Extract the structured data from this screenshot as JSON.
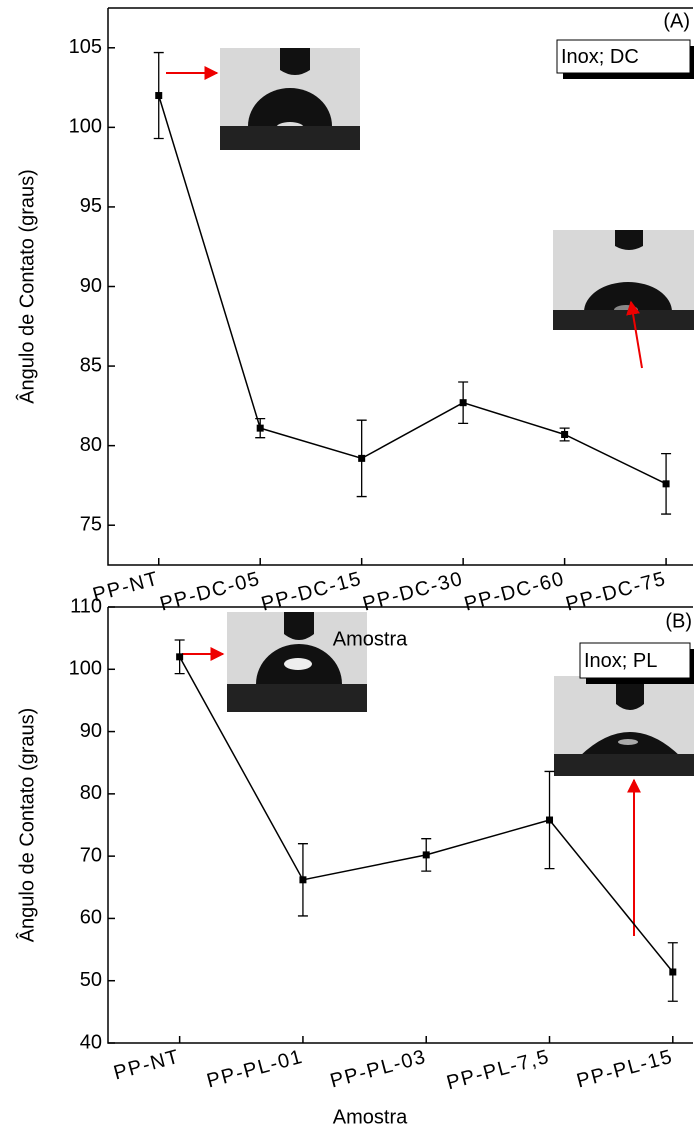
{
  "chart_data": [
    {
      "type": "line",
      "annotation": "(A)",
      "x_label": "Amostra",
      "y_label": "Ângulo de Contato (graus)",
      "categories": [
        "PP-NT",
        "PP-DC-05",
        "PP-DC-15",
        "PP-DC-30",
        "PP-DC-60",
        "PP-DC-75"
      ],
      "series": [
        {
          "name": "Inox; DC",
          "color": "#000000",
          "values": [
            102.0,
            81.1,
            79.2,
            82.7,
            80.7,
            77.6
          ],
          "errors": [
            2.7,
            0.6,
            2.4,
            1.3,
            0.4,
            1.9
          ]
        }
      ],
      "ylim": [
        72.5,
        107.5
      ],
      "yticks": [
        75,
        80,
        85,
        90,
        95,
        100,
        105
      ]
    },
    {
      "type": "line",
      "annotation": "(B)",
      "x_label": "Amostra",
      "y_label": "Ângulo de Contato (graus)",
      "categories": [
        "PP-NT",
        "PP-PL-01",
        "PP-PL-03",
        "PP-PL-7,5",
        "PP-PL-15"
      ],
      "series": [
        {
          "name": "Inox; PL",
          "color": "#000000",
          "values": [
            102.0,
            66.2,
            70.2,
            75.8,
            51.4
          ],
          "errors": [
            2.7,
            5.8,
            2.6,
            7.8,
            4.7
          ]
        }
      ],
      "ylim": [
        40,
        110
      ],
      "yticks": [
        40,
        50,
        60,
        70,
        80,
        90,
        100,
        110
      ]
    }
  ]
}
